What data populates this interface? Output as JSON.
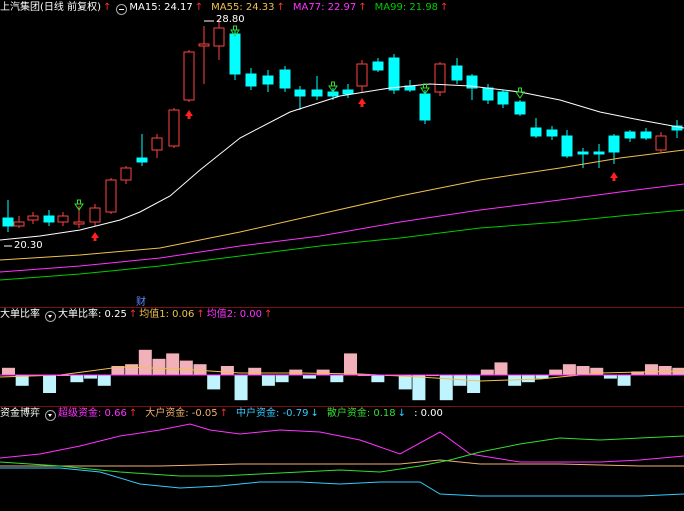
{
  "main": {
    "title": "上汽集团(日线 前复权)",
    "ma15_label": "MA15: 24.17",
    "ma55_label": "MA55: 24.33",
    "ma77_label": "MA77: 22.97",
    "ma99_label": "MA99: 21.98",
    "high_label": "28.80",
    "low_label": "20.30",
    "cai_label": "财",
    "colors": {
      "up": "#ff4444",
      "down": "#00ffff",
      "ma15": "#ffffff",
      "ma55": "#f0c050",
      "ma77": "#ff33ff",
      "ma99": "#00cc00"
    }
  },
  "big_order": {
    "title": "大单比率",
    "value_label": "大单比率: 0.25",
    "avg1_label": "均值1: 0.06",
    "avg2_label": "均值2: 0.00"
  },
  "fund_game": {
    "title": "资金博弈",
    "super_label": "超级资金: 0.66",
    "large_label": "大户资金: -0.05",
    "mid_label": "中户资金: -0.79",
    "retail_label": "散户资金: 0.18",
    "extra_label": ": 0.00",
    "colors": {
      "super": "#ff33ff",
      "large": "#f0b070",
      "mid": "#33ccff",
      "retail": "#33dd33"
    }
  }
}
